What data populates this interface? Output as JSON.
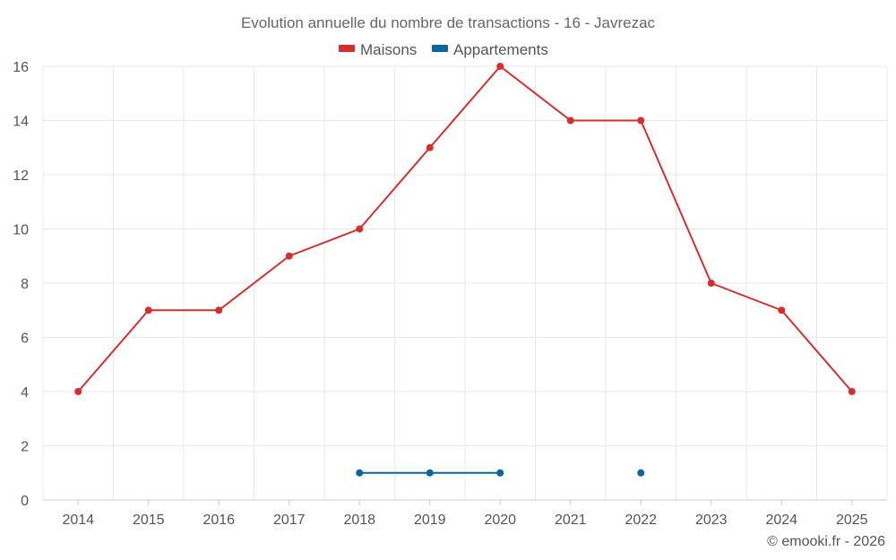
{
  "chart_data": {
    "type": "line",
    "title": "Evolution annuelle du nombre de transactions - 16 - Javrezac",
    "categories": [
      "2014",
      "2015",
      "2016",
      "2017",
      "2018",
      "2019",
      "2020",
      "2021",
      "2022",
      "2023",
      "2024",
      "2025"
    ],
    "ylim": [
      0,
      16
    ],
    "yticks": [
      0,
      2,
      4,
      6,
      8,
      10,
      12,
      14,
      16
    ],
    "grid": true,
    "legend_position": "top-center",
    "series": [
      {
        "name": "Maisons",
        "color": "#d32f2f",
        "values": [
          4,
          7,
          7,
          9,
          10,
          13,
          16,
          14,
          14,
          8,
          7,
          4
        ]
      },
      {
        "name": "Appartements",
        "color": "#0d65a0",
        "values": [
          null,
          null,
          null,
          null,
          1,
          1,
          1,
          null,
          1,
          null,
          null,
          null
        ]
      }
    ],
    "credit": "© emooki.fr - 2026"
  }
}
